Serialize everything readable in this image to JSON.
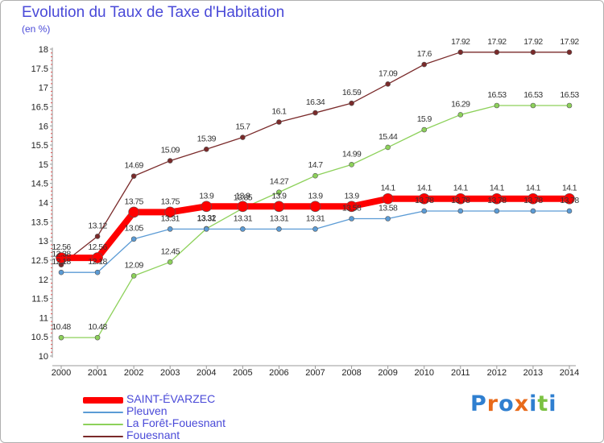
{
  "header": {
    "title": "Evolution du Taux de Taxe d'Habitation",
    "subtitle": "(en %)"
  },
  "logo": {
    "letters": [
      "P",
      "r",
      "o",
      "x",
      "i",
      "t",
      "i"
    ],
    "colors": [
      "#2f7fd0",
      "#e86a1a",
      "#2f7fd0",
      "#e86a1a",
      "#2f7fd0",
      "#7cc242",
      "#2f7fd0"
    ]
  },
  "chart_data": {
    "type": "line",
    "title": "Evolution du Taux de Taxe d'Habitation",
    "ylabel": "(en %)",
    "xlabel": "",
    "x": [
      "2000",
      "2001",
      "2002",
      "2003",
      "2004",
      "2005",
      "2006",
      "2007",
      "2008",
      "2009",
      "2010",
      "2011",
      "2012",
      "2013",
      "2014"
    ],
    "ylim": [
      10,
      18
    ],
    "yticks": [
      "10",
      "10.5",
      "11",
      "11.5",
      "12",
      "12.5",
      "13",
      "13.5",
      "14",
      "14.5",
      "15",
      "15.5",
      "16",
      "16.5",
      "17",
      "17.5",
      "18"
    ],
    "grid": false,
    "legend": "bottom-left",
    "series": [
      {
        "name": "SAINT-ÉVARZEC",
        "color": "#ff0000",
        "values": [
          12.56,
          12.56,
          13.75,
          13.75,
          13.9,
          13.9,
          13.9,
          13.9,
          13.9,
          14.1,
          14.1,
          14.1,
          14.1,
          14.1,
          14.1
        ],
        "labels": [
          "12.56",
          "12.56",
          "13.75",
          "13.75",
          "13.9",
          "13.9",
          "13.9",
          "13.9",
          "13.9",
          "14.1",
          "14.1",
          "14.1",
          "14.1",
          "14.1",
          "14.1"
        ]
      },
      {
        "name": "Pleuven",
        "color": "#5b9bd5",
        "values": [
          12.18,
          12.18,
          13.05,
          13.31,
          13.31,
          13.31,
          13.31,
          13.31,
          13.58,
          13.58,
          13.78,
          13.78,
          13.78,
          13.78,
          13.78
        ],
        "labels": [
          "12.18",
          "12.18",
          "13.05",
          "13.31",
          "13.31",
          "13.31",
          "13.31",
          "13.31",
          "13.58",
          "13.58",
          "13.78",
          "13.78",
          "13.78",
          "13.78",
          "13.78"
        ]
      },
      {
        "name": "La Forêt-Fouesnant",
        "color": "#8dd15a",
        "values": [
          10.48,
          10.48,
          12.09,
          12.45,
          13.32,
          13.85,
          14.27,
          14.7,
          14.99,
          15.44,
          15.9,
          16.29,
          16.53,
          16.53,
          16.53
        ],
        "labels": [
          "10.48",
          "10.48",
          "12.09",
          "12.45",
          "13.32",
          "13.85",
          "14.27",
          "14.7",
          "14.99",
          "15.44",
          "15.9",
          "16.29",
          "16.53",
          "16.53",
          "16.53"
        ]
      },
      {
        "name": "Fouesnant",
        "color": "#7a2a2a",
        "values": [
          12.38,
          13.12,
          14.69,
          15.09,
          15.39,
          15.7,
          16.1,
          16.34,
          16.59,
          17.09,
          17.6,
          17.92,
          17.92,
          17.92,
          17.92
        ],
        "labels": [
          "12.38",
          "13.12",
          "14.69",
          "15.09",
          "15.39",
          "15.7",
          "16.1",
          "16.34",
          "16.59",
          "17.09",
          "17.6",
          "17.92",
          "17.92",
          "17.92",
          "17.92"
        ]
      }
    ]
  }
}
